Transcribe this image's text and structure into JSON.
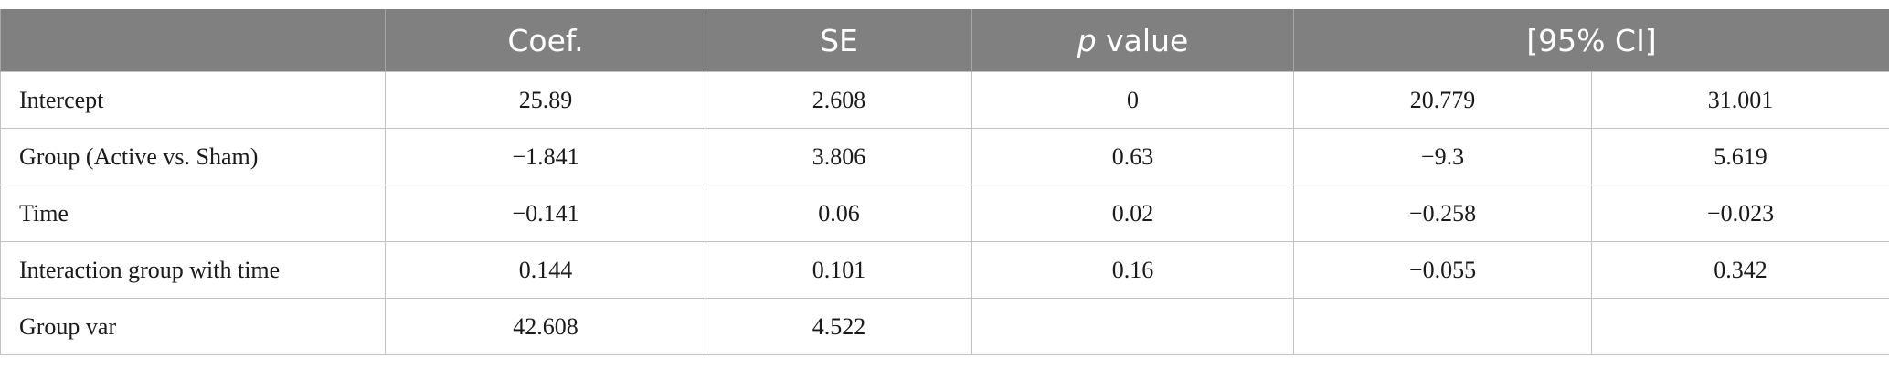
{
  "table": {
    "headers": {
      "coef": "Coef.",
      "se": "SE",
      "p_italic": "p",
      "p_rest": " value",
      "ci": "[95% CI]"
    },
    "rows": [
      {
        "label": "Intercept",
        "coef": "25.89",
        "se": "2.608",
        "p": "0",
        "ci_low": "20.779",
        "ci_high": "31.001"
      },
      {
        "label": "Group (Active vs. Sham)",
        "coef": "−1.841",
        "se": "3.806",
        "p": "0.63",
        "ci_low": "−9.3",
        "ci_high": "5.619"
      },
      {
        "label": "Time",
        "coef": "−0.141",
        "se": "0.06",
        "p": "0.02",
        "ci_low": "−0.258",
        "ci_high": "−0.023"
      },
      {
        "label": "Interaction group with time",
        "coef": "0.144",
        "se": "0.101",
        "p": "0.16",
        "ci_low": "−0.055",
        "ci_high": "0.342"
      },
      {
        "label": "Group var",
        "coef": "42.608",
        "se": "4.522",
        "p": "",
        "ci_low": "",
        "ci_high": ""
      }
    ]
  }
}
